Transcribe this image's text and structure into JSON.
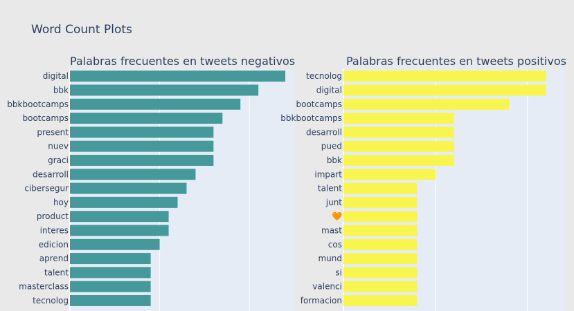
{
  "figure": {
    "title": "Word Count Plots"
  },
  "colors": {
    "negative": "#45999b",
    "positive": "#f9f54f",
    "plot_bg": "#e5ecf6",
    "paper_bg": "#e9e9e9"
  },
  "chart_data": [
    {
      "type": "bar",
      "orientation": "horizontal",
      "title": "Palabras frecuentes en tweets negativos",
      "categories": [
        "digital",
        "bbk",
        "bbkbootcamps",
        "bootcamps",
        "present",
        "nuev",
        "graci",
        "desarroll",
        "cibersegur",
        "hoy",
        "product",
        "interes",
        "edicion",
        "aprend",
        "talent",
        "masterclass",
        "tecnolog"
      ],
      "values": [
        24,
        21,
        19,
        17,
        16,
        16,
        16,
        14,
        13,
        12,
        11,
        11,
        10,
        9,
        9,
        9,
        9
      ],
      "xlim": [
        0,
        25
      ],
      "grid": true,
      "color": "#45999b"
    },
    {
      "type": "bar",
      "orientation": "horizontal",
      "title": "Palabras frecuentes en tweets positivos",
      "categories": [
        "tecnolog",
        "digital",
        "bootcamps",
        "bbkbootcamps",
        "desarroll",
        "pued",
        "bbk",
        "impart",
        "talent",
        "junt",
        "🧡",
        "mast",
        "cos",
        "mund",
        "si",
        "valenci",
        "formacion"
      ],
      "values": [
        22,
        22,
        18,
        12,
        12,
        12,
        12,
        10,
        8,
        8,
        8,
        8,
        8,
        8,
        8,
        8,
        8
      ],
      "xlim": [
        0,
        24
      ],
      "grid": true,
      "color": "#f9f54f"
    }
  ]
}
